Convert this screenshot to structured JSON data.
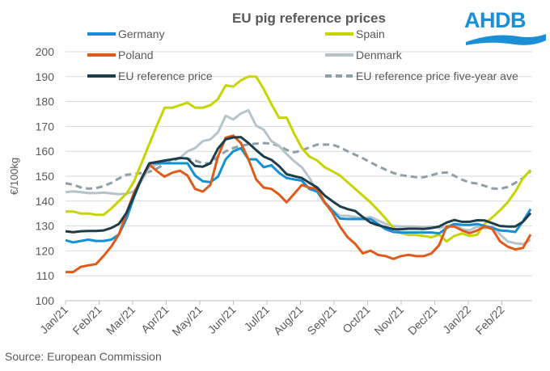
{
  "chart_data": {
    "type": "line",
    "title": "EU pig reference prices",
    "ylabel": "€/100kg",
    "xlabel": "",
    "ylim": [
      100,
      200
    ],
    "yticks": [
      "100",
      "110",
      "120",
      "130",
      "140",
      "150",
      "160",
      "170",
      "180",
      "190",
      "200"
    ],
    "xticks": [
      "Jan/21",
      "Feb/21",
      "Mar/21",
      "Apr/21",
      "May/21",
      "Jun/21",
      "Jul/21",
      "Aug/21",
      "Sep/21",
      "Oct/21",
      "Nov/21",
      "Dec/21",
      "Jan/22",
      "Feb/22"
    ],
    "grid": "horizontal",
    "legend": "top",
    "source": "Source: European Commission",
    "logo_text": "AHDB",
    "x": [
      "2021-01-04",
      "2021-01-11",
      "2021-01-18",
      "2021-01-25",
      "2021-02-01",
      "2021-02-08",
      "2021-02-15",
      "2021-02-22",
      "2021-03-01",
      "2021-03-08",
      "2021-03-15",
      "2021-03-22",
      "2021-03-29",
      "2021-04-05",
      "2021-04-12",
      "2021-04-19",
      "2021-04-26",
      "2021-05-03",
      "2021-05-10",
      "2021-05-17",
      "2021-05-24",
      "2021-05-31",
      "2021-06-07",
      "2021-06-14",
      "2021-06-21",
      "2021-06-28",
      "2021-07-05",
      "2021-07-12",
      "2021-07-19",
      "2021-07-26",
      "2021-08-02",
      "2021-08-09",
      "2021-08-16",
      "2021-08-23",
      "2021-08-30",
      "2021-09-06",
      "2021-09-13",
      "2021-09-20",
      "2021-09-27",
      "2021-10-04",
      "2021-10-11",
      "2021-10-18",
      "2021-10-25",
      "2021-11-01",
      "2021-11-08",
      "2021-11-15",
      "2021-11-22",
      "2021-11-29",
      "2021-12-06",
      "2021-12-13",
      "2021-12-20",
      "2021-12-27",
      "2022-01-03",
      "2022-01-10",
      "2022-01-17",
      "2022-01-24",
      "2022-01-31",
      "2022-02-07",
      "2022-02-14",
      "2022-02-21",
      "2022-02-28",
      "2022-03-07"
    ],
    "series": [
      {
        "name": "Germany",
        "color": "#1490d4",
        "dashed": false,
        "values": [
          124.3,
          123.4,
          124,
          124.5,
          124,
          124,
          124.5,
          126.6,
          133,
          141.7,
          149.3,
          155.2,
          155.2,
          155.2,
          155.2,
          155.2,
          155.2,
          150.3,
          148,
          147.6,
          149.8,
          156.8,
          160,
          161.3,
          156.8,
          156.8,
          153.6,
          154.4,
          151.4,
          149.3,
          148.7,
          148.2,
          144.9,
          143.8,
          139.5,
          136.3,
          133,
          132.8,
          132.8,
          132.8,
          132.8,
          130.8,
          128.7,
          127.6,
          127.4,
          127.4,
          127.4,
          127.4,
          127.4,
          127,
          129.2,
          130.8,
          130.5,
          130.4,
          130.8,
          130,
          129.2,
          128.2,
          128,
          127.6,
          131.9,
          136.8
        ]
      },
      {
        "name": "Spain",
        "color": "#c8d400",
        "dashed": false,
        "values": [
          135.8,
          135.8,
          135,
          135,
          134.5,
          134.5,
          137,
          140,
          143,
          148,
          155.5,
          163,
          170.5,
          177.5,
          177.5,
          178.5,
          179.5,
          177.5,
          177.5,
          178.5,
          181,
          186.5,
          186,
          188.5,
          190,
          190,
          185,
          179,
          173.5,
          173.5,
          167,
          161.3,
          157.9,
          156.3,
          153.6,
          152,
          150.3,
          147.6,
          144.9,
          142.2,
          139.5,
          136.3,
          133,
          129.3,
          127.1,
          126.4,
          126.4,
          126,
          125.5,
          126.5,
          123.8,
          126,
          127,
          126,
          126.5,
          131,
          133.5,
          136.3,
          139.5,
          143.8,
          149.2,
          152.5
        ]
      },
      {
        "name": "Poland",
        "color": "#e05a1a",
        "dashed": false,
        "values": [
          111.5,
          111.5,
          113.6,
          114.2,
          114.7,
          118,
          121.8,
          126.6,
          135.3,
          143.4,
          149.3,
          154.7,
          152,
          149.8,
          151.4,
          152.2,
          150.3,
          144.9,
          143.8,
          146.5,
          157.9,
          165.5,
          166.3,
          163.3,
          156.8,
          148.7,
          145.4,
          144.9,
          142.7,
          139.5,
          143,
          146.5,
          145.4,
          144.9,
          139.5,
          135.3,
          129.8,
          125.5,
          122.8,
          119,
          120.1,
          118.4,
          117.9,
          116.8,
          117.9,
          118.4,
          117.9,
          117.9,
          119,
          122.3,
          129.8,
          129.8,
          128.2,
          127.1,
          128.2,
          129.8,
          128.7,
          123.8,
          121.7,
          120.6,
          121.2,
          126.6
        ]
      },
      {
        "name": "Denmark",
        "color": "#b5c4ca",
        "dashed": false,
        "values": [
          143.6,
          143.9,
          143.6,
          143.2,
          143.2,
          143.4,
          143.1,
          142.8,
          143,
          143.9,
          148.2,
          153.6,
          154.7,
          155.7,
          156.8,
          157.3,
          160,
          161.3,
          164.1,
          164.8,
          167.6,
          174.3,
          172.8,
          175.2,
          176.5,
          170.3,
          168.7,
          164.1,
          162.2,
          158.9,
          156,
          153.6,
          149.3,
          143.8,
          139,
          136.3,
          134.1,
          134.1,
          133.6,
          133,
          133.6,
          132.2,
          130.8,
          130,
          129.8,
          129.8,
          129.8,
          129.5,
          129.8,
          129.2,
          129.8,
          130.8,
          128.7,
          128.2,
          129.8,
          129,
          129.8,
          126.6,
          123.8,
          123.1,
          122.7,
          124.4
        ]
      },
      {
        "name": "EU reference price",
        "color": "#1e3d4a",
        "dashed": false,
        "values": [
          127.9,
          127.5,
          127.9,
          128,
          128,
          128.2,
          129.2,
          130.8,
          135.3,
          142.2,
          149.3,
          155.2,
          155.7,
          156.3,
          156.8,
          157.3,
          157.1,
          154.1,
          153.8,
          155.2,
          161.1,
          164.8,
          165.6,
          165.7,
          163.3,
          160.5,
          157.9,
          156.6,
          154.1,
          150.8,
          150,
          149.3,
          147.3,
          145.5,
          142.2,
          140,
          137.9,
          136.8,
          136,
          133.6,
          131.4,
          130.3,
          129.5,
          128.7,
          128.7,
          128.9,
          128.9,
          128.8,
          129.2,
          129.8,
          131.4,
          132.4,
          131.7,
          131.7,
          132.3,
          132.2,
          131.1,
          130,
          129.8,
          129.8,
          131.7,
          135.2
        ]
      },
      {
        "name": "EU reference price five-year ave",
        "color": "#8e9fa7",
        "dashed": true,
        "values": [
          147.2,
          146.6,
          145.5,
          145,
          145.2,
          146,
          147.3,
          149.1,
          150.6,
          150.9,
          151.3,
          151.8,
          153.1,
          155,
          156.3,
          157.2,
          157.1,
          156.3,
          155.2,
          155.2,
          157.9,
          160,
          161.3,
          162.2,
          162.8,
          163.1,
          163.3,
          163.1,
          162.2,
          160.6,
          159.6,
          160.3,
          161.6,
          162.7,
          162.7,
          162.7,
          161.6,
          160,
          158.6,
          157.2,
          155.6,
          154,
          152.6,
          151.3,
          150.4,
          150,
          149.6,
          149.6,
          150.4,
          151.3,
          151.5,
          150.2,
          148.6,
          147.5,
          147,
          146.1,
          145.1,
          144.9,
          145.7,
          147.3,
          149.3,
          152
        ]
      }
    ]
  }
}
